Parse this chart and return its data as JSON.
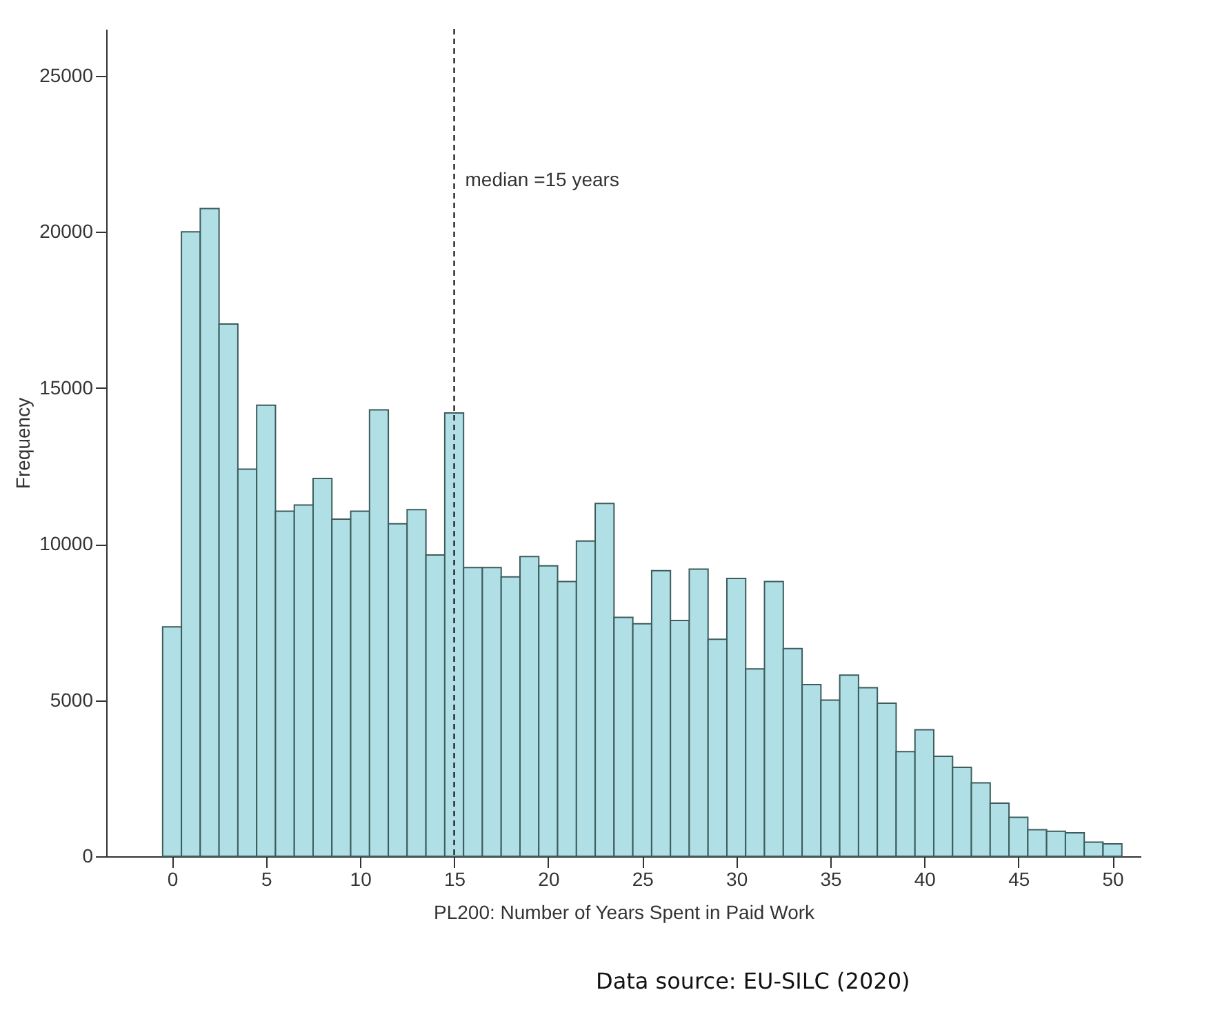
{
  "chart_data": {
    "type": "histogram",
    "xlabel": "PL200: Number of Years Spent in Paid Work",
    "ylabel": "Frequency",
    "bins": [
      -0.5,
      0.5,
      1.5,
      2.5,
      3.5,
      4.5,
      5.5,
      6.5,
      7.5,
      8.5,
      9.5,
      10.5,
      11.5,
      12.5,
      13.5,
      14.5,
      15.5,
      16.5,
      17.5,
      18.5,
      19.5,
      20.5,
      21.5,
      22.5,
      23.5,
      24.5,
      25.5,
      26.5,
      27.5,
      28.5,
      29.5,
      30.5,
      31.5,
      32.5,
      33.5,
      34.5,
      35.5,
      36.5,
      37.5,
      38.5,
      39.5,
      40.5,
      41.5,
      42.5,
      43.5,
      44.5,
      45.5,
      46.5,
      47.5,
      48.5,
      49.5,
      50.5
    ],
    "values": [
      7350,
      20000,
      20750,
      17050,
      12400,
      14450,
      11050,
      11250,
      12100,
      10800,
      11050,
      14300,
      10650,
      11100,
      9650,
      14200,
      9250,
      9250,
      8950,
      9600,
      9300,
      8800,
      10100,
      11300,
      7650,
      7450,
      9150,
      7550,
      9200,
      6950,
      8900,
      6000,
      8800,
      6650,
      5500,
      5000,
      5800,
      5400,
      4900,
      3350,
      4050,
      3200,
      2850,
      2350,
      1700,
      1250,
      850,
      800,
      750,
      450,
      400
    ],
    "color": "#b0e0e6",
    "xlim": [
      -3.5,
      51.5
    ],
    "xticks": [
      0,
      5,
      10,
      15,
      20,
      25,
      30,
      35,
      40,
      45,
      50
    ],
    "ylim": [
      0,
      26500
    ],
    "yticks": [
      0,
      5000,
      10000,
      15000,
      20000,
      25000
    ],
    "grid": false,
    "ref_lines": [
      {
        "axis": "x",
        "value": 15,
        "label": "median =15 years",
        "line_style": "dashed"
      }
    ],
    "annotations": [
      "Data source: EU-SILC (2020)"
    ]
  }
}
